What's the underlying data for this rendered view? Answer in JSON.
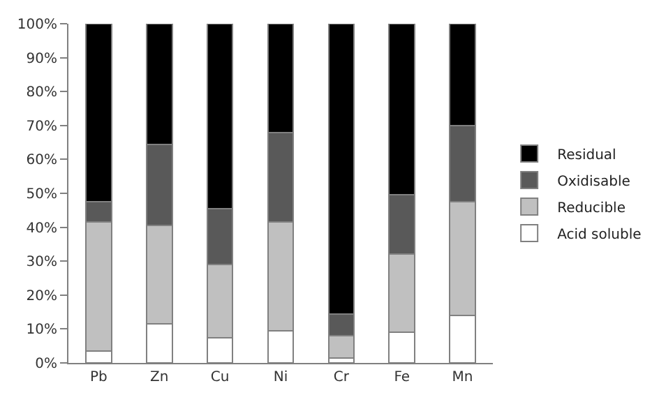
{
  "chart_data": {
    "type": "bar",
    "stacked": true,
    "categories": [
      "Pb",
      "Zn",
      "Cu",
      "Ni",
      "Cr",
      "Fe",
      "Mn"
    ],
    "series": [
      {
        "name": "Acid soluble",
        "color": "#ffffff",
        "values": [
          3.5,
          11.5,
          7.5,
          9.5,
          1.5,
          9,
          14
        ]
      },
      {
        "name": "Reducible",
        "color": "#c0c0c0",
        "values": [
          38,
          29,
          21.5,
          32,
          6.5,
          23,
          33.5
        ]
      },
      {
        "name": "Oxidisable",
        "color": "#595959",
        "values": [
          6,
          24,
          16.5,
          26.5,
          6.5,
          17.5,
          22.5
        ]
      },
      {
        "name": "Residual",
        "color": "#000000",
        "values": [
          52.5,
          35.5,
          54.5,
          32,
          85.5,
          50.5,
          30
        ]
      }
    ],
    "ylim": [
      0,
      100
    ],
    "yticks": [
      {
        "value": 0,
        "label": "0%"
      },
      {
        "value": 10,
        "label": "10%"
      },
      {
        "value": 20,
        "label": "20%"
      },
      {
        "value": 30,
        "label": "30%"
      },
      {
        "value": 40,
        "label": "40%"
      },
      {
        "value": 50,
        "label": "50%"
      },
      {
        "value": 60,
        "label": "60%"
      },
      {
        "value": 70,
        "label": "70%"
      },
      {
        "value": 80,
        "label": "80%"
      },
      {
        "value": 90,
        "label": "90%"
      },
      {
        "value": 100,
        "label": "100%"
      }
    ],
    "legend": "right"
  }
}
